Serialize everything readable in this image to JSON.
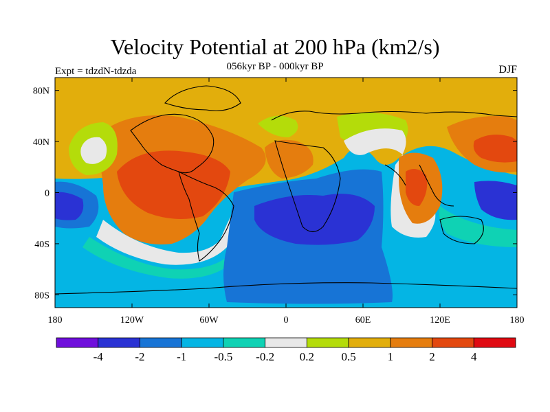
{
  "title": "Velocity Potential at 200 hPa (km2/s)",
  "subtitle": "056kyr BP - 000kyr BP",
  "left_label": "Expt = tdzdN-tdzda",
  "right_label": "DJF",
  "lat_ticks": [
    {
      "label": "80N",
      "value": 80
    },
    {
      "label": "40N",
      "value": 40
    },
    {
      "label": "0",
      "value": 0
    },
    {
      "label": "40S",
      "value": -40
    },
    {
      "label": "80S",
      "value": -80
    }
  ],
  "lon_ticks": [
    {
      "label": "180",
      "value": -180
    },
    {
      "label": "120W",
      "value": -120
    },
    {
      "label": "60W",
      "value": -60
    },
    {
      "label": "0",
      "value": 0
    },
    {
      "label": "60E",
      "value": 60
    },
    {
      "label": "120E",
      "value": 120
    },
    {
      "label": "180",
      "value": 180
    }
  ],
  "colorbar": {
    "colors": [
      "#6f0fdc",
      "#2a32d4",
      "#1774d6",
      "#04b5e4",
      "#0fd2b4",
      "#e8e8e8",
      "#b4dc0a",
      "#e2ae0c",
      "#e57d0e",
      "#e3480f",
      "#e00a12"
    ],
    "labels": [
      "-4",
      "-2",
      "-1",
      "-0.5",
      "-0.2",
      "0.2",
      "0.5",
      "1",
      "2",
      "4"
    ]
  },
  "colors": {
    "background_positive": "#e2ae0c",
    "background_negative": "#04b5e4",
    "coast": "#000000"
  }
}
